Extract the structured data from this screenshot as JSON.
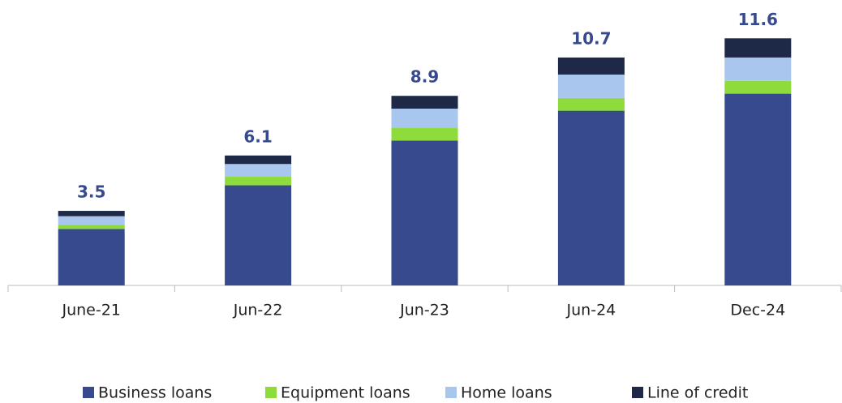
{
  "chart_data": {
    "type": "stacked_bar",
    "categories": [
      "June-21",
      "Jun-22",
      "Jun-23",
      "Jun-24",
      "Dec-24"
    ],
    "series": [
      {
        "name": "Business loans",
        "color": "#374a8e",
        "values": [
          2.65,
          4.7,
          6.8,
          8.2,
          9.0
        ]
      },
      {
        "name": "Equipment loans",
        "color": "#8edc3b",
        "values": [
          0.2,
          0.4,
          0.6,
          0.6,
          0.6
        ]
      },
      {
        "name": "Home loans",
        "color": "#a9c6ee",
        "values": [
          0.4,
          0.6,
          0.9,
          1.1,
          1.1
        ]
      },
      {
        "name": "Line of credit",
        "color": "#1e2847",
        "values": [
          0.25,
          0.4,
          0.6,
          0.8,
          0.9
        ]
      }
    ],
    "totals": [
      3.5,
      6.1,
      8.9,
      10.7,
      11.6
    ],
    "ylim": [
      0,
      13.4
    ],
    "legend": "bottom"
  }
}
